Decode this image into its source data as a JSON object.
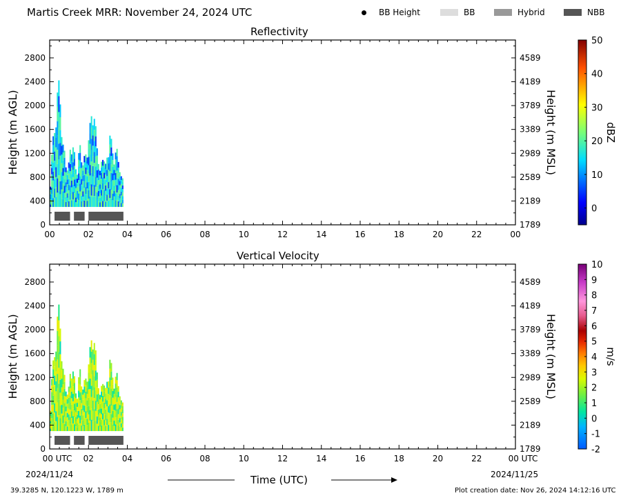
{
  "header": {
    "title": "Martis Creek MRR:  November 24, 2024 UTC",
    "legend": [
      {
        "label": "BB Height",
        "kind": "dot",
        "color": "#000000"
      },
      {
        "label": "BB",
        "kind": "swatch",
        "color": "#dddddd"
      },
      {
        "label": "Hybrid",
        "kind": "swatch",
        "color": "#999999"
      },
      {
        "label": "NBB",
        "kind": "swatch",
        "color": "#555555"
      }
    ]
  },
  "footer": {
    "location": "39.3285 N, 120.1223 W, 1789 m",
    "creation": "Plot creation date: Nov 26, 2024 14:12:16 UTC",
    "date_start": "2024/11/24",
    "date_end": "2024/11/25",
    "x_title": "Time (UTC)"
  },
  "chart_data": [
    {
      "type": "heatmap",
      "title": "Reflectivity",
      "ylabel": "Height (m AGL)",
      "ylabel_right": "Height (m MSL)",
      "xlim": [
        0,
        24
      ],
      "ylim": [
        0,
        3100
      ],
      "x_ticks": [
        "00",
        "02",
        "04",
        "06",
        "08",
        "10",
        "12",
        "14",
        "16",
        "18",
        "20",
        "22",
        "00"
      ],
      "y_ticks": [
        0,
        400,
        800,
        1200,
        1600,
        2000,
        2400,
        2800
      ],
      "y_ticks_right": [
        1789,
        2189,
        2589,
        2989,
        3389,
        3789,
        4189,
        4589
      ],
      "colorbar": {
        "label": "dBZ",
        "ticks": [
          0,
          10,
          20,
          30,
          40,
          50
        ],
        "range": [
          -5,
          50
        ]
      },
      "data_extent_hours": [
        0,
        3.8
      ],
      "echo_top_profile": [
        [
          0.05,
          1000
        ],
        [
          0.15,
          1400
        ],
        [
          0.3,
          1800
        ],
        [
          0.45,
          2500
        ],
        [
          0.55,
          2300
        ],
        [
          0.65,
          1400
        ],
        [
          0.8,
          1250
        ],
        [
          0.95,
          900
        ],
        [
          1.1,
          1500
        ],
        [
          1.25,
          1300
        ],
        [
          1.4,
          900
        ],
        [
          1.55,
          1400
        ],
        [
          1.7,
          1100
        ],
        [
          1.85,
          1200
        ],
        [
          2.05,
          1600
        ],
        [
          2.2,
          2100
        ],
        [
          2.4,
          1600
        ],
        [
          2.6,
          900
        ],
        [
          2.75,
          1300
        ],
        [
          2.9,
          1000
        ],
        [
          3.1,
          1600
        ],
        [
          3.3,
          1200
        ],
        [
          3.5,
          1300
        ],
        [
          3.7,
          800
        ]
      ],
      "bb_type_bars": [
        {
          "type": "NBB",
          "start": 0.25,
          "end": 1.05
        },
        {
          "type": "NBB",
          "start": 1.25,
          "end": 1.8
        },
        {
          "type": "NBB",
          "start": 2.0,
          "end": 3.8
        }
      ],
      "grid": false
    },
    {
      "type": "heatmap",
      "title": "Vertical Velocity",
      "ylabel": "Height (m AGL)",
      "ylabel_right": "Height (m MSL)",
      "xlim": [
        0,
        24
      ],
      "ylim": [
        0,
        3100
      ],
      "x_ticks": [
        "00 UTC",
        "02",
        "04",
        "06",
        "08",
        "10",
        "12",
        "14",
        "16",
        "18",
        "20",
        "22",
        "00 UTC"
      ],
      "y_ticks": [
        0,
        400,
        800,
        1200,
        1600,
        2000,
        2400,
        2800
      ],
      "y_ticks_right": [
        1789,
        2189,
        2589,
        2989,
        3389,
        3789,
        4189,
        4589
      ],
      "colorbar": {
        "label": "m/s",
        "ticks": [
          -2,
          -1,
          0,
          1,
          2,
          3,
          4,
          5,
          6,
          7,
          8,
          9,
          10
        ],
        "range": [
          -2,
          10
        ]
      },
      "data_extent_hours": [
        0,
        3.8
      ],
      "echo_top_profile": [
        [
          0.05,
          1000
        ],
        [
          0.15,
          1400
        ],
        [
          0.3,
          1800
        ],
        [
          0.45,
          2500
        ],
        [
          0.55,
          2300
        ],
        [
          0.65,
          1400
        ],
        [
          0.8,
          1250
        ],
        [
          0.95,
          900
        ],
        [
          1.1,
          1500
        ],
        [
          1.25,
          1300
        ],
        [
          1.4,
          900
        ],
        [
          1.55,
          1400
        ],
        [
          1.7,
          1100
        ],
        [
          1.85,
          1200
        ],
        [
          2.05,
          1600
        ],
        [
          2.2,
          2100
        ],
        [
          2.4,
          1600
        ],
        [
          2.6,
          900
        ],
        [
          2.75,
          1300
        ],
        [
          2.9,
          1000
        ],
        [
          3.1,
          1600
        ],
        [
          3.3,
          1200
        ],
        [
          3.5,
          1300
        ],
        [
          3.7,
          800
        ]
      ],
      "bb_type_bars": [
        {
          "type": "NBB",
          "start": 0.25,
          "end": 1.05
        },
        {
          "type": "NBB",
          "start": 1.25,
          "end": 1.8
        },
        {
          "type": "NBB",
          "start": 2.0,
          "end": 3.8
        }
      ],
      "grid": false
    }
  ]
}
